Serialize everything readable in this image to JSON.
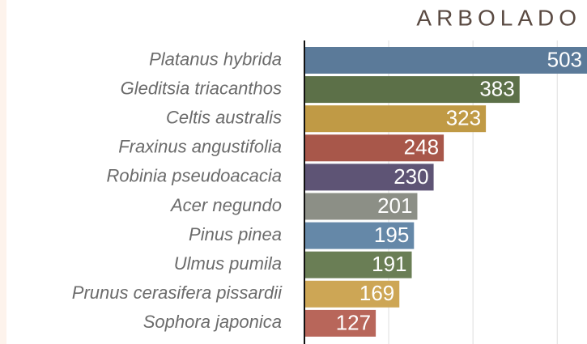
{
  "chart_data": {
    "type": "barh",
    "title": "ARBOLADO",
    "categories": [
      "Platanus hybrida",
      "Gleditsia triacanthos",
      "Celtis australis",
      "Fraxinus angustifolia",
      "Robinia pseudoacacia",
      "Acer negundo",
      "Pinus pinea",
      "Ulmus pumila",
      "Prunus cerasifera pissardii",
      "Sophora japonica"
    ],
    "values": [
      503,
      383,
      323,
      248,
      230,
      201,
      195,
      191,
      169,
      127
    ],
    "colors": [
      "#5b7a99",
      "#5c7048",
      "#c09a45",
      "#a8574a",
      "#5e5475",
      "#8c8f86",
      "#6588a8",
      "#6a7e55",
      "#cda655",
      "#b8665a"
    ],
    "xlim": [
      0,
      503
    ],
    "xticks": [
      0,
      150,
      300,
      450
    ],
    "grid": true
  }
}
